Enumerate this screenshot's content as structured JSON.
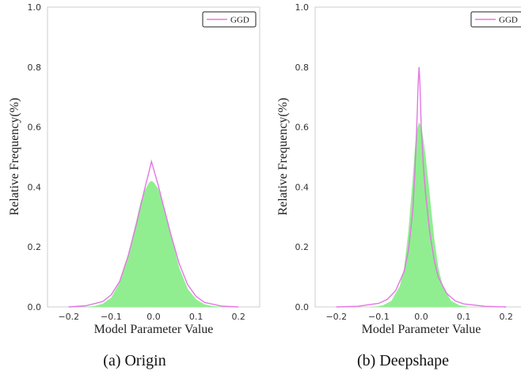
{
  "chart_data": [
    {
      "type": "area",
      "caption": "(a) Origin",
      "xlabel": "Model Parameter Value",
      "ylabel": "Relative Frequency(%)",
      "xlim": [
        -0.25,
        0.25
      ],
      "ylim": [
        0.0,
        1.0
      ],
      "xticks": [
        "−0.2",
        "−0.1",
        "0.0",
        "0.1",
        "0.2"
      ],
      "xtick_values": [
        -0.2,
        -0.1,
        0.0,
        0.1,
        0.2
      ],
      "yticks": [
        "0.0",
        "0.2",
        "0.4",
        "0.6",
        "0.8",
        "1.0"
      ],
      "ytick_values": [
        0.0,
        0.2,
        0.4,
        0.6,
        0.8,
        1.0
      ],
      "grid": false,
      "legend": {
        "position": "top-right",
        "entries": [
          "GGD"
        ]
      },
      "series": [
        {
          "kind": "histogram",
          "color": "#90ee90",
          "x": [
            -0.16,
            -0.14,
            -0.12,
            -0.1,
            -0.08,
            -0.06,
            -0.04,
            -0.03,
            -0.02,
            -0.01,
            -0.005,
            0.0,
            0.01,
            0.02,
            0.03,
            0.04,
            0.06,
            0.08,
            0.1,
            0.12,
            0.14,
            0.16
          ],
          "y": [
            0.0,
            0.002,
            0.01,
            0.03,
            0.08,
            0.17,
            0.29,
            0.35,
            0.39,
            0.415,
            0.42,
            0.415,
            0.395,
            0.355,
            0.3,
            0.24,
            0.13,
            0.06,
            0.025,
            0.008,
            0.002,
            0.0
          ]
        },
        {
          "name": "GGD",
          "kind": "line",
          "color": "#e377e3",
          "x": [
            -0.2,
            -0.16,
            -0.12,
            -0.1,
            -0.08,
            -0.06,
            -0.04,
            -0.03,
            -0.02,
            -0.01,
            -0.005,
            0.0,
            0.01,
            0.02,
            0.03,
            0.04,
            0.06,
            0.08,
            0.1,
            0.12,
            0.16,
            0.2
          ],
          "y": [
            0.0,
            0.004,
            0.018,
            0.04,
            0.085,
            0.17,
            0.28,
            0.34,
            0.4,
            0.455,
            0.485,
            0.46,
            0.41,
            0.355,
            0.3,
            0.245,
            0.145,
            0.075,
            0.035,
            0.015,
            0.003,
            0.0
          ]
        }
      ]
    },
    {
      "type": "area",
      "caption": "(b) Deepshape",
      "xlabel": "Model Parameter Value",
      "ylabel": "Relative Frequency(%)",
      "xlim": [
        -0.25,
        0.25
      ],
      "ylim": [
        0.0,
        1.0
      ],
      "xticks": [
        "−0.2",
        "−0.1",
        "0.0",
        "0.1",
        "0.2"
      ],
      "xtick_values": [
        -0.2,
        -0.1,
        0.0,
        0.1,
        0.2
      ],
      "yticks": [
        "0.0",
        "0.2",
        "0.4",
        "0.6",
        "0.8",
        "1.0"
      ],
      "ytick_values": [
        0.0,
        0.2,
        0.4,
        0.6,
        0.8,
        1.0
      ],
      "grid": false,
      "legend": {
        "position": "top-right",
        "entries": [
          "GGD"
        ]
      },
      "series": [
        {
          "kind": "histogram",
          "color": "#90ee90",
          "x": [
            -0.11,
            -0.09,
            -0.07,
            -0.05,
            -0.04,
            -0.03,
            -0.02,
            -0.015,
            -0.01,
            -0.005,
            0.0,
            0.005,
            0.01,
            0.02,
            0.03,
            0.04,
            0.05,
            0.07,
            0.09,
            0.11
          ],
          "y": [
            0.0,
            0.005,
            0.02,
            0.07,
            0.13,
            0.25,
            0.42,
            0.52,
            0.59,
            0.615,
            0.6,
            0.555,
            0.5,
            0.37,
            0.23,
            0.13,
            0.07,
            0.02,
            0.005,
            0.0
          ]
        },
        {
          "name": "GGD",
          "kind": "line",
          "color": "#e377e3",
          "x": [
            -0.2,
            -0.15,
            -0.1,
            -0.08,
            -0.06,
            -0.04,
            -0.03,
            -0.02,
            -0.015,
            -0.01,
            -0.007,
            -0.005,
            -0.003,
            0.0,
            0.005,
            0.01,
            0.02,
            0.03,
            0.04,
            0.06,
            0.08,
            0.1,
            0.15,
            0.2
          ],
          "y": [
            0.0,
            0.002,
            0.012,
            0.025,
            0.055,
            0.12,
            0.19,
            0.32,
            0.45,
            0.62,
            0.75,
            0.8,
            0.74,
            0.6,
            0.47,
            0.38,
            0.25,
            0.16,
            0.1,
            0.045,
            0.02,
            0.01,
            0.002,
            0.0
          ]
        }
      ]
    }
  ]
}
